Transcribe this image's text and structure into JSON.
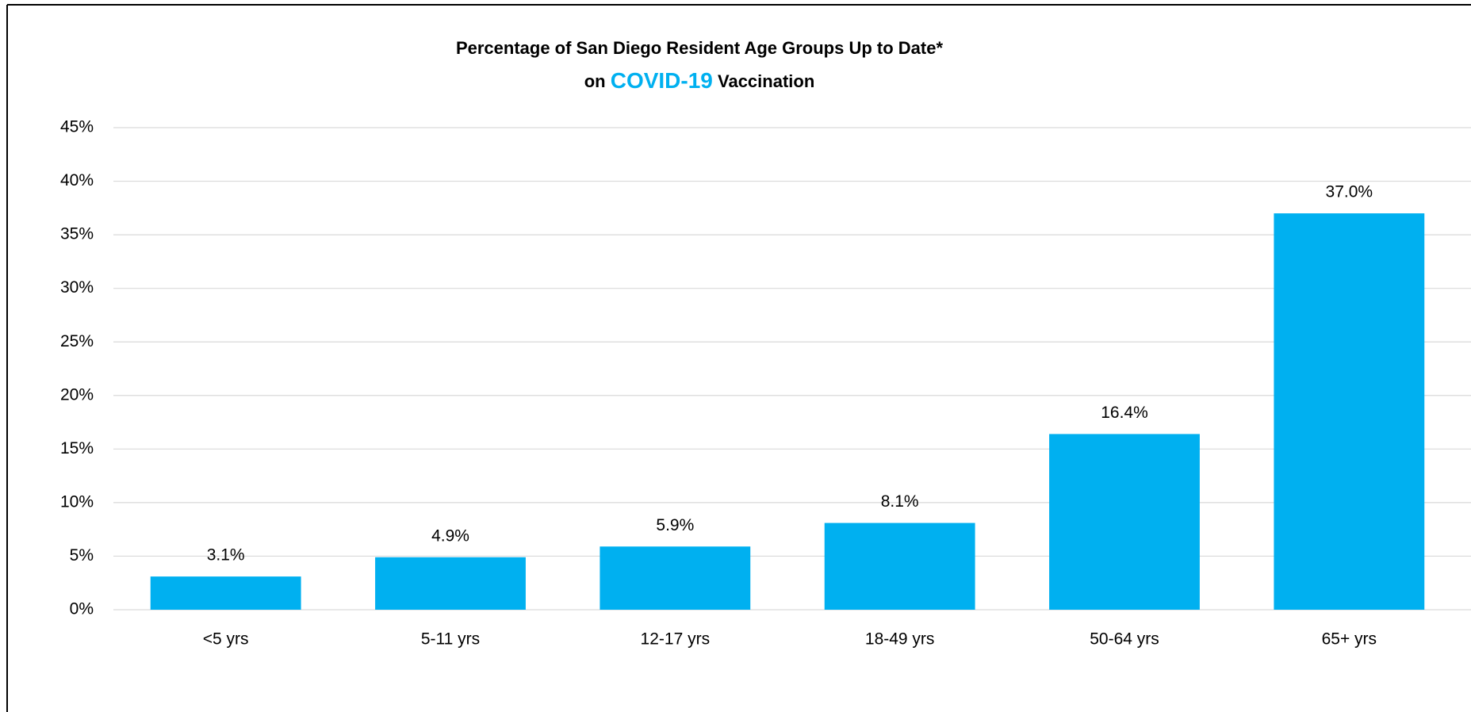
{
  "chart_data": {
    "type": "bar",
    "title": {
      "line1": "Percentage of San Diego Resident Age Groups Up to Date*",
      "line2": [
        "on",
        "COVID-19",
        "Vaccination"
      ]
    },
    "categories": [
      "<5 yrs",
      "5-11 yrs",
      "12-17 yrs",
      "18-49 yrs",
      "50-64 yrs",
      "65+ yrs"
    ],
    "values": [
      3.1,
      4.9,
      5.9,
      8.1,
      16.4,
      37.0
    ],
    "value_labels": [
      "3.1%",
      "4.9%",
      "5.9%",
      "8.1%",
      "16.4%",
      "37.0%"
    ],
    "color": "#00b0f0",
    "highlight_color": "#00b0f0",
    "ylim": [
      0,
      45
    ],
    "yticks": [
      {
        "value": 0,
        "label": "0%"
      },
      {
        "value": 5,
        "label": "5%"
      },
      {
        "value": 10,
        "label": "10%"
      },
      {
        "value": 15,
        "label": "15%"
      },
      {
        "value": 20,
        "label": "20%"
      },
      {
        "value": 25,
        "label": "25%"
      },
      {
        "value": 30,
        "label": "30%"
      },
      {
        "value": 35,
        "label": "35%"
      },
      {
        "value": 40,
        "label": "40%"
      },
      {
        "value": 45,
        "label": "45%"
      }
    ],
    "grid": true
  }
}
